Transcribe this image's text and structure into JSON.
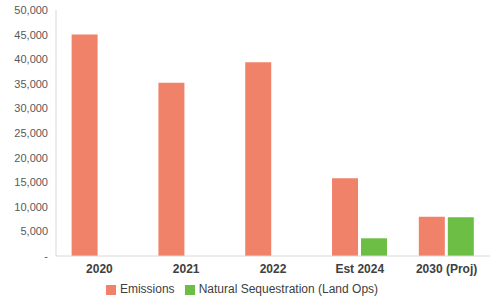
{
  "chart_data": {
    "type": "bar",
    "categories": [
      "2020",
      "2021",
      "2022",
      "Est 2024",
      "2030 (Proj)"
    ],
    "series": [
      {
        "name": "Emissions",
        "color": "#f0826a",
        "values": [
          45000,
          35200,
          39400,
          15800,
          8000
        ]
      },
      {
        "name": "Natural Sequestration (Land Ops)",
        "color": "#6dbe45",
        "values": [
          null,
          null,
          null,
          3600,
          7900
        ]
      }
    ],
    "ylim": [
      0,
      50000
    ],
    "yticks": [
      {
        "value": 0,
        "label": "-"
      },
      {
        "value": 5000,
        "label": "5,000"
      },
      {
        "value": 10000,
        "label": "10,000"
      },
      {
        "value": 15000,
        "label": "15,000"
      },
      {
        "value": 20000,
        "label": "20,000"
      },
      {
        "value": 25000,
        "label": "25,000"
      },
      {
        "value": 30000,
        "label": "30,000"
      },
      {
        "value": 35000,
        "label": "35,000"
      },
      {
        "value": 40000,
        "label": "40,000"
      },
      {
        "value": 45000,
        "label": "45,000"
      },
      {
        "value": 50000,
        "label": "50,000"
      }
    ],
    "grid": false,
    "legend": "bottom"
  }
}
